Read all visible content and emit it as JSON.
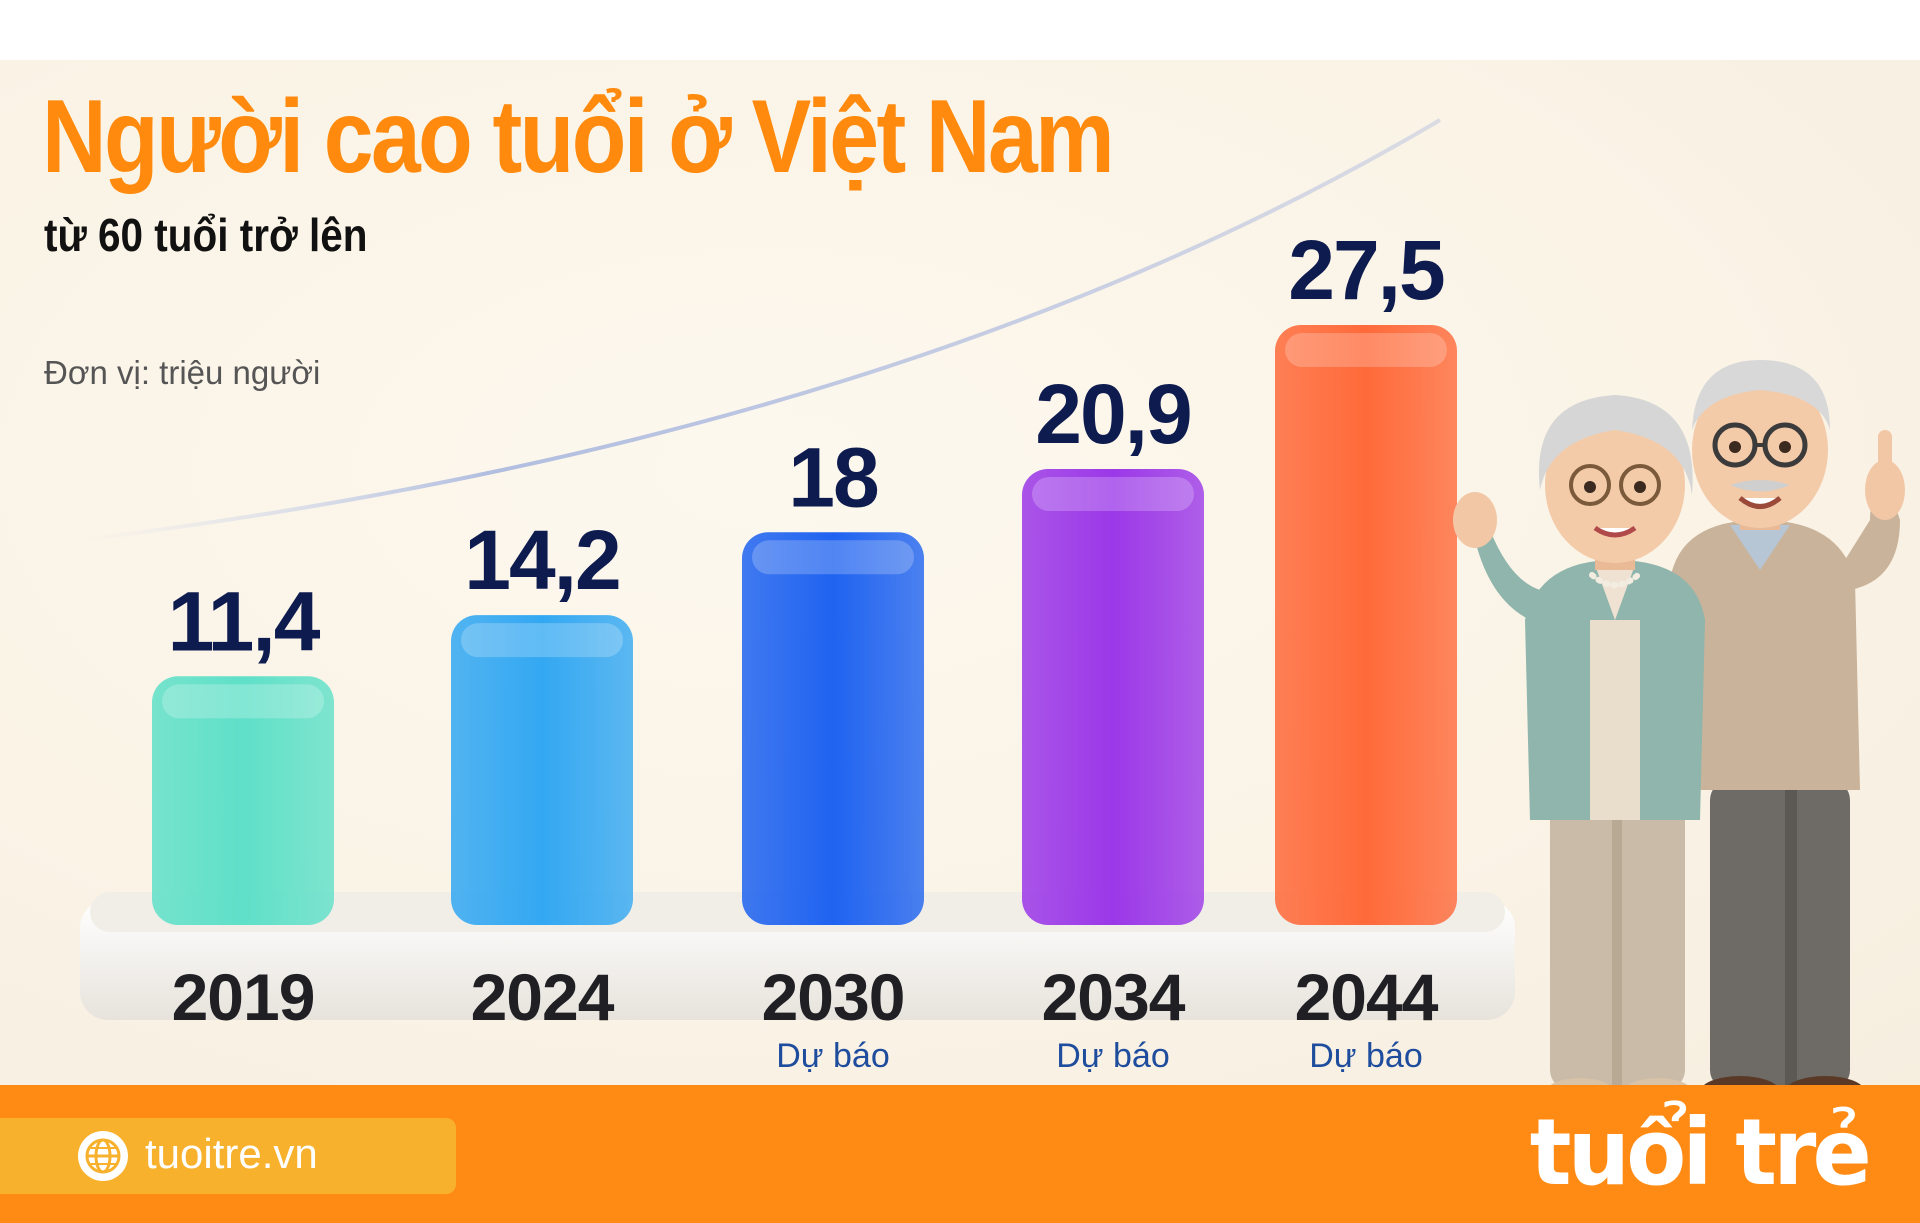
{
  "header": {
    "title": "Người cao tuổi ở Việt Nam",
    "subtitle": "từ 60 tuổi trở lên",
    "unit_note": "Đơn vị: triệu người"
  },
  "chart_data": {
    "type": "bar",
    "title": "Người cao tuổi ở Việt Nam",
    "subtitle": "từ 60 tuổi trở lên",
    "ylabel": "Đơn vị: triệu người",
    "categories": [
      "2019",
      "2024",
      "2030",
      "2034",
      "2044"
    ],
    "values": [
      11.4,
      14.2,
      18,
      20.9,
      27.5
    ],
    "value_labels": [
      "11,4",
      "14,2",
      "18",
      "20,9",
      "27,5"
    ],
    "notes": [
      "",
      "",
      "Dự báo",
      "Dự báo",
      "Dự báo"
    ],
    "bar_colors": [
      "#5fe0c8",
      "#33a8f2",
      "#1f63f0",
      "#9b38e8",
      "#ff6a3a"
    ],
    "ylim": [
      0,
      30
    ],
    "grid": false,
    "legend": "none"
  },
  "footer": {
    "site": "tuoitre.vn",
    "brand": "tuổi trẻ",
    "icon": "globe-icon"
  },
  "colors": {
    "title": "#ff8a0d",
    "value_text": "#0d1b4f",
    "footer": "#ff8b14",
    "site_pill": "#f8b12c"
  }
}
